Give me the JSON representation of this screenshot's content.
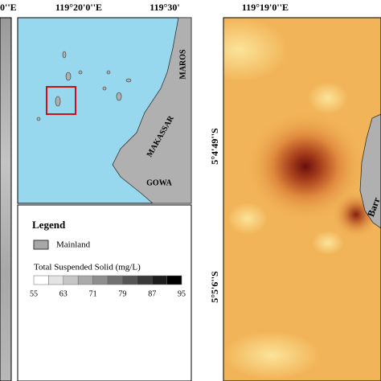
{
  "left_panel": {
    "lon_label": "0''E"
  },
  "inset_map": {
    "lon_labels": [
      "119°20'0''E",
      "119°30'"
    ],
    "places": [
      "MAROS",
      "MAKASSAR",
      "GOWA"
    ]
  },
  "legend": {
    "title": "Legend",
    "mainland": "Mainland",
    "scale_title": "Total Suspended Solid (mg/L)",
    "scale_labels": [
      55,
      63,
      71,
      79,
      87,
      95
    ]
  },
  "right_map": {
    "lon_label": "119°19'0''E",
    "lat_labels": [
      "5°4'49''S",
      "5°5'6''S"
    ],
    "island_label": "Barr"
  }
}
